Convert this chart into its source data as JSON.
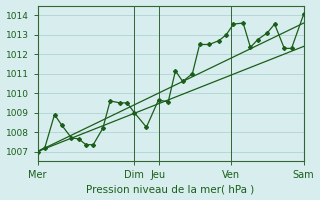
{
  "xlabel": "Pression niveau de la mer( hPa )",
  "bg_color": "#d8eeee",
  "grid_color": "#aacccc",
  "line_color": "#1a5e1a",
  "ylim": [
    1006.5,
    1014.5
  ],
  "xlim": [
    0,
    11
  ],
  "day_labels": [
    "Mer",
    "Dim",
    "Jeu",
    "Ven",
    "Sam"
  ],
  "day_positions": [
    0,
    4,
    5,
    8,
    11
  ],
  "yticks": [
    1007,
    1008,
    1009,
    1010,
    1011,
    1012,
    1013,
    1014
  ],
  "vline_positions": [
    4,
    5,
    8,
    11
  ],
  "trend1_x": [
    0,
    11
  ],
  "trend1_y": [
    1007.0,
    1013.6
  ],
  "trend2_x": [
    0,
    11
  ],
  "trend2_y": [
    1007.0,
    1012.4
  ],
  "data_x": [
    0,
    0.3,
    0.7,
    1.0,
    1.4,
    1.7,
    2.0,
    2.3,
    2.7,
    3.0,
    3.4,
    3.7,
    4.0,
    4.5,
    5.0,
    5.4,
    5.7,
    6.0,
    6.4,
    6.7,
    7.1,
    7.5,
    7.8,
    8.1,
    8.5,
    8.8,
    9.1,
    9.5,
    9.8,
    10.2,
    10.5,
    11.0
  ],
  "data_y": [
    1007.0,
    1007.2,
    1008.9,
    1008.35,
    1007.7,
    1007.65,
    1007.35,
    1007.35,
    1008.2,
    1009.6,
    1009.5,
    1009.5,
    1009.0,
    1008.25,
    1009.65,
    1009.55,
    1011.15,
    1010.6,
    1011.0,
    1012.5,
    1012.5,
    1012.7,
    1013.0,
    1013.55,
    1013.6,
    1012.35,
    1012.75,
    1013.1,
    1013.55,
    1012.3,
    1012.3,
    1014.05
  ]
}
